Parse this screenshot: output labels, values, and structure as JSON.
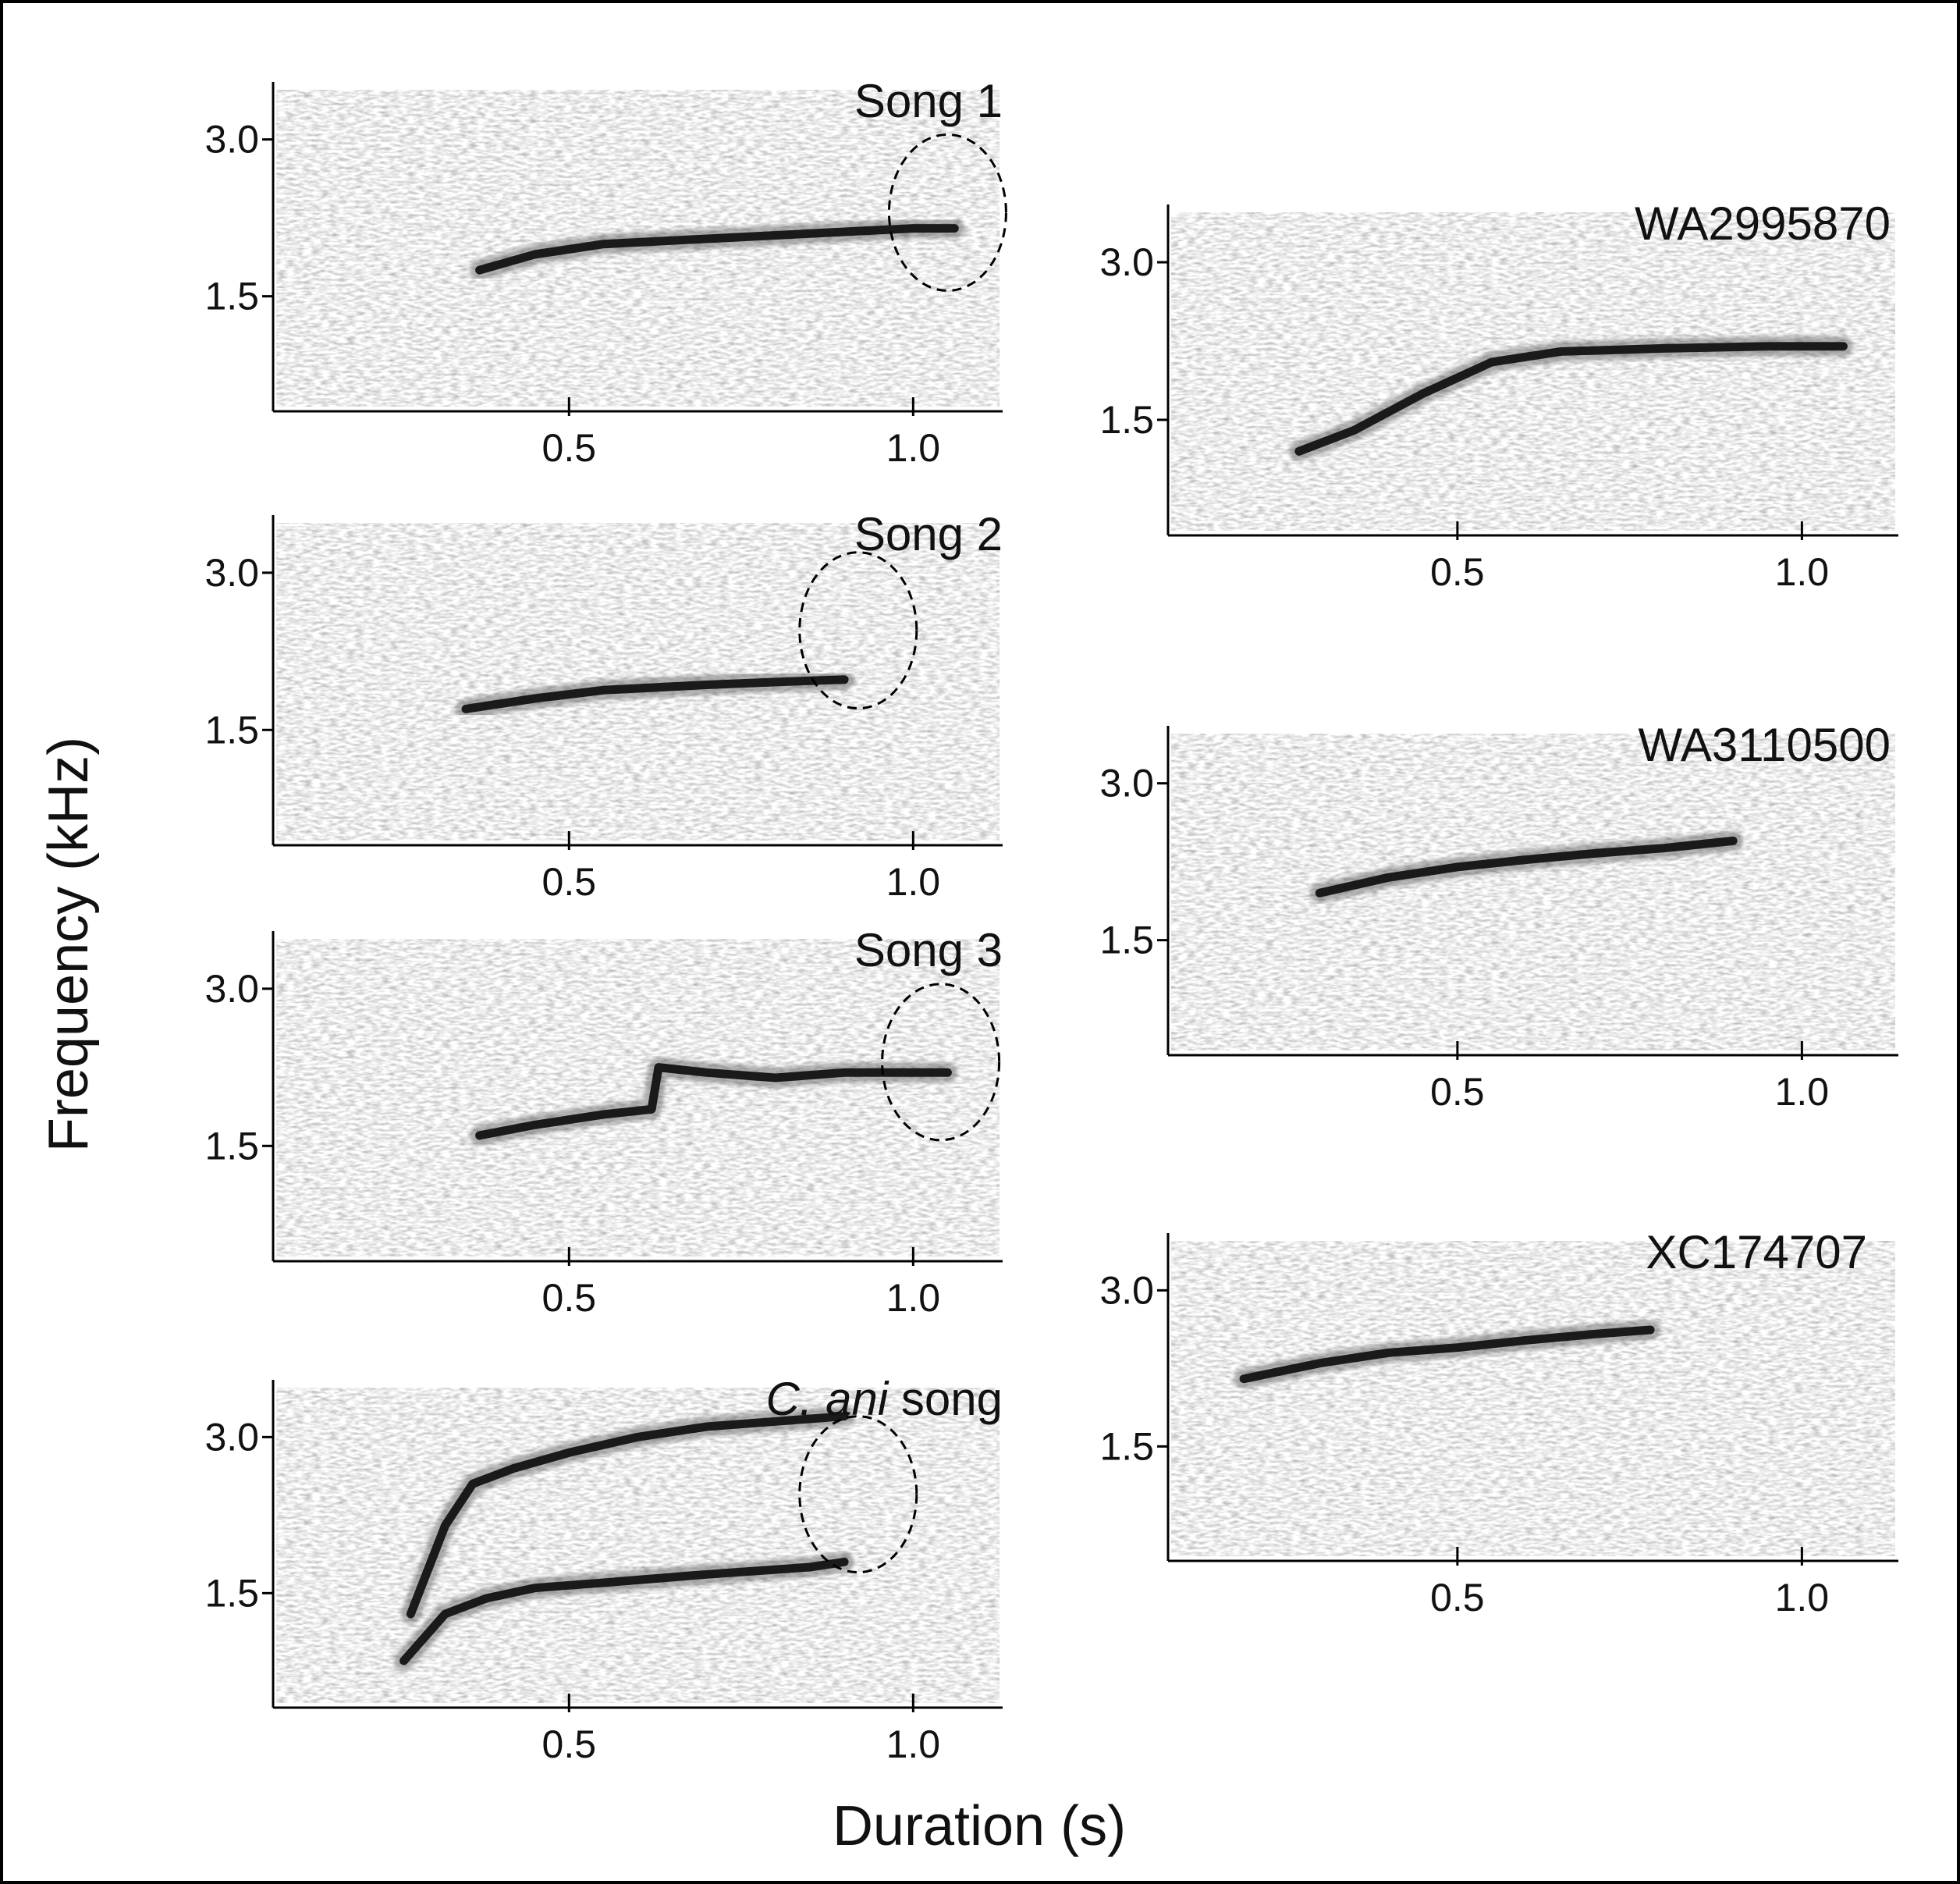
{
  "figure": {
    "ylabel": "Frequency (kHz)",
    "xlabel": "Duration (s)"
  },
  "chart_data": [
    {
      "type": "line",
      "title": "Song 1",
      "xlabel": "Duration (s)",
      "ylabel": "Frequency (kHz)",
      "xlim": [
        0.07,
        1.13
      ],
      "ylim": [
        0.4,
        3.55
      ],
      "xticks": [
        0.5,
        1.0
      ],
      "xtick_labels": [
        "0.5",
        "1.0"
      ],
      "yticks": [
        1.5,
        3.0
      ],
      "ytick_labels": [
        "1.5",
        "3.0"
      ],
      "grid": false,
      "series": [
        {
          "x": [
            0.37,
            0.45,
            0.55,
            0.7,
            0.85,
            1.0,
            1.06
          ],
          "y": [
            1.75,
            1.9,
            2.0,
            2.05,
            2.1,
            2.15,
            2.15
          ]
        }
      ],
      "annotations": [
        {
          "type": "dashed-ellipse",
          "x": 1.05,
          "y": 2.3
        }
      ]
    },
    {
      "type": "line",
      "title": "Song 2",
      "xlabel": "Duration (s)",
      "ylabel": "Frequency (kHz)",
      "xlim": [
        0.07,
        1.13
      ],
      "ylim": [
        0.4,
        3.55
      ],
      "xticks": [
        0.5,
        1.0
      ],
      "xtick_labels": [
        "0.5",
        "1.0"
      ],
      "yticks": [
        1.5,
        3.0
      ],
      "ytick_labels": [
        "1.5",
        "3.0"
      ],
      "grid": false,
      "series": [
        {
          "x": [
            0.35,
            0.45,
            0.55,
            0.7,
            0.85,
            0.9
          ],
          "y": [
            1.7,
            1.8,
            1.88,
            1.93,
            1.97,
            1.98
          ]
        }
      ],
      "annotations": [
        {
          "type": "dashed-ellipse",
          "x": 0.92,
          "y": 2.45
        }
      ]
    },
    {
      "type": "line",
      "title": "Song 3",
      "xlabel": "Duration (s)",
      "ylabel": "Frequency (kHz)",
      "xlim": [
        0.07,
        1.13
      ],
      "ylim": [
        0.4,
        3.55
      ],
      "xticks": [
        0.5,
        1.0
      ],
      "xtick_labels": [
        "0.5",
        "1.0"
      ],
      "yticks": [
        1.5,
        3.0
      ],
      "ytick_labels": [
        "1.5",
        "3.0"
      ],
      "grid": false,
      "series": [
        {
          "x": [
            0.37,
            0.45,
            0.55,
            0.62,
            0.63,
            0.7,
            0.8,
            0.9,
            1.05
          ],
          "y": [
            1.6,
            1.7,
            1.8,
            1.85,
            2.25,
            2.2,
            2.15,
            2.2,
            2.2
          ]
        }
      ],
      "annotations": [
        {
          "type": "dashed-ellipse",
          "x": 1.04,
          "y": 2.3
        }
      ]
    },
    {
      "type": "line",
      "title": "C. ani song",
      "title_italic_part": "C. ani",
      "title_plain_part": " song",
      "xlabel": "Duration (s)",
      "ylabel": "Frequency (kHz)",
      "xlim": [
        0.07,
        1.13
      ],
      "ylim": [
        0.4,
        3.55
      ],
      "xticks": [
        0.5,
        1.0
      ],
      "xtick_labels": [
        "0.5",
        "1.0"
      ],
      "yticks": [
        1.5,
        3.0
      ],
      "ytick_labels": [
        "1.5",
        "3.0"
      ],
      "grid": false,
      "series": [
        {
          "x": [
            0.27,
            0.32,
            0.36,
            0.42,
            0.5,
            0.6,
            0.7,
            0.8,
            0.9
          ],
          "y": [
            1.3,
            2.15,
            2.55,
            2.7,
            2.85,
            3.0,
            3.1,
            3.15,
            3.2
          ]
        },
        {
          "x": [
            0.26,
            0.32,
            0.38,
            0.45,
            0.55,
            0.7,
            0.85,
            0.9
          ],
          "y": [
            0.85,
            1.3,
            1.45,
            1.55,
            1.6,
            1.68,
            1.75,
            1.8
          ]
        }
      ],
      "annotations": [
        {
          "type": "dashed-ellipse",
          "x": 0.92,
          "y": 2.45
        }
      ]
    },
    {
      "type": "line",
      "title": "WA2995870",
      "xlabel": "Duration (s)",
      "ylabel": "Frequency (kHz)",
      "xlim": [
        0.08,
        1.14
      ],
      "ylim": [
        0.4,
        3.55
      ],
      "xticks": [
        0.5,
        1.0
      ],
      "xtick_labels": [
        "0.5",
        "1.0"
      ],
      "yticks": [
        1.5,
        3.0
      ],
      "ytick_labels": [
        "1.5",
        "3.0"
      ],
      "grid": false,
      "series": [
        {
          "x": [
            0.27,
            0.35,
            0.45,
            0.55,
            0.65,
            0.8,
            0.95,
            1.06
          ],
          "y": [
            1.2,
            1.4,
            1.75,
            2.05,
            2.15,
            2.18,
            2.2,
            2.2
          ]
        }
      ]
    },
    {
      "type": "line",
      "title": "WA3110500",
      "xlabel": "Duration (s)",
      "ylabel": "Frequency (kHz)",
      "xlim": [
        0.08,
        1.14
      ],
      "ylim": [
        0.4,
        3.55
      ],
      "xticks": [
        0.5,
        1.0
      ],
      "xtick_labels": [
        "0.5",
        "1.0"
      ],
      "yticks": [
        1.5,
        3.0
      ],
      "ytick_labels": [
        "1.5",
        "3.0"
      ],
      "grid": false,
      "series": [
        {
          "x": [
            0.3,
            0.4,
            0.5,
            0.6,
            0.7,
            0.8,
            0.9
          ],
          "y": [
            1.95,
            2.1,
            2.2,
            2.27,
            2.33,
            2.38,
            2.45
          ]
        }
      ]
    },
    {
      "type": "line",
      "title": "XC174707",
      "xlabel": "Duration (s)",
      "ylabel": "Frequency (kHz)",
      "xlim": [
        0.08,
        1.14
      ],
      "ylim": [
        0.4,
        3.55
      ],
      "xticks": [
        0.5,
        1.0
      ],
      "xtick_labels": [
        "0.5",
        "1.0"
      ],
      "yticks": [
        1.5,
        3.0
      ],
      "ytick_labels": [
        "1.5",
        "3.0"
      ],
      "grid": false,
      "series": [
        {
          "x": [
            0.19,
            0.3,
            0.4,
            0.5,
            0.6,
            0.7,
            0.78
          ],
          "y": [
            2.15,
            2.3,
            2.4,
            2.45,
            2.52,
            2.58,
            2.62
          ]
        }
      ]
    }
  ]
}
